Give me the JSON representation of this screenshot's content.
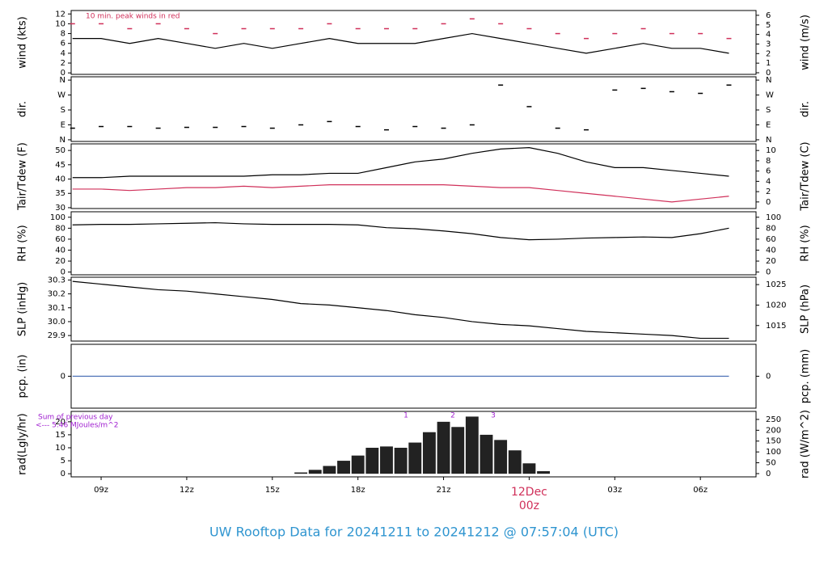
{
  "chart_data": [
    {
      "type": "line",
      "ylabel": "wind (kts)",
      "y2label": "wind (m/s)",
      "annotation": "10 min. peak winds in red",
      "x": [
        8,
        9,
        10,
        11,
        12,
        13,
        14,
        15,
        16,
        17,
        18,
        19,
        20,
        21,
        22,
        23,
        24,
        25,
        26,
        27,
        28,
        29,
        30,
        31
      ],
      "series": [
        {
          "color": "#000000",
          "values": [
            7,
            7,
            6,
            7,
            6,
            5,
            6,
            5,
            6,
            7,
            6,
            6,
            6,
            7,
            8,
            7,
            6,
            5,
            4,
            5,
            6,
            5,
            5,
            4
          ]
        },
        {
          "color": "#d0305a",
          "marker": "dash",
          "values": [
            10,
            10,
            9,
            10,
            9,
            8,
            9,
            9,
            9,
            10,
            9,
            9,
            9,
            10,
            11,
            10,
            9,
            8,
            7,
            8,
            9,
            8,
            8,
            7
          ]
        }
      ],
      "xlim": [
        7.95,
        31.95
      ],
      "ylim": [
        -0.3,
        12.7
      ],
      "yticks": [
        0,
        2,
        4,
        6,
        8,
        10,
        12
      ],
      "y2lim": [
        -0.17,
        6.5
      ],
      "y2ticks": [
        0,
        1,
        2,
        3,
        4,
        5,
        6
      ]
    },
    {
      "type": "scatter",
      "ylabel": "dir.",
      "y2label": "dir.",
      "x": [
        8,
        9,
        10,
        11,
        12,
        13,
        14,
        15,
        16,
        17,
        18,
        19,
        20,
        21,
        22,
        23,
        24,
        25,
        26,
        27,
        28,
        29,
        30,
        31
      ],
      "series": [
        {
          "color": "#000000",
          "values": [
            70,
            80,
            80,
            70,
            75,
            75,
            80,
            70,
            90,
            110,
            80,
            60,
            80,
            70,
            90,
            330,
            200,
            70,
            60,
            300,
            310,
            290,
            280,
            330
          ]
        }
      ],
      "xlim": [
        7.95,
        31.95
      ],
      "ylim": [
        -10,
        380
      ],
      "yticks": [
        {
          "value": 0,
          "label": "N"
        },
        {
          "value": 90,
          "label": "E"
        },
        {
          "value": 180,
          "label": "S"
        },
        {
          "value": 270,
          "label": "W"
        },
        {
          "value": 360,
          "label": "N"
        }
      ],
      "y2lim": [
        -10,
        380
      ],
      "y2ticks": [
        {
          "value": 0,
          "label": "N"
        },
        {
          "value": 90,
          "label": "E"
        },
        {
          "value": 180,
          "label": "S"
        },
        {
          "value": 270,
          "label": "W"
        },
        {
          "value": 360,
          "label": "N"
        }
      ]
    },
    {
      "type": "line",
      "ylabel": "Tair/Tdew (F)",
      "y2label": "Tair/Tdew (C)",
      "x": [
        8,
        9,
        10,
        11,
        12,
        13,
        14,
        15,
        16,
        17,
        18,
        19,
        20,
        21,
        22,
        23,
        24,
        25,
        26,
        27,
        28,
        29,
        30,
        31
      ],
      "series": [
        {
          "color": "#000000",
          "values": [
            40.5,
            40.5,
            41,
            41,
            41,
            41,
            41,
            41.5,
            41.5,
            42,
            42,
            44,
            46,
            47,
            49,
            50.5,
            51,
            49,
            46,
            44,
            44,
            43,
            42,
            41
          ]
        },
        {
          "color": "#d0305a",
          "values": [
            36.5,
            36.5,
            36,
            36.5,
            37,
            37,
            37.5,
            37,
            37.5,
            38,
            38,
            38,
            38,
            38,
            37.5,
            37,
            37,
            36,
            35,
            34,
            33,
            32,
            33,
            34
          ]
        }
      ],
      "xlim": [
        7.95,
        31.95
      ],
      "ylim": [
        29.7,
        52.3
      ],
      "yticks": [
        30,
        35,
        40,
        45,
        50
      ],
      "y2lim": [
        -1.28,
        11.28
      ],
      "y2ticks": [
        0,
        2,
        4,
        6,
        8,
        10
      ]
    },
    {
      "type": "line",
      "ylabel": "RH (%)",
      "y2label": "RH (%)",
      "x": [
        8,
        9,
        10,
        11,
        12,
        13,
        14,
        15,
        16,
        17,
        18,
        19,
        20,
        21,
        22,
        23,
        24,
        25,
        26,
        27,
        28,
        29,
        30,
        31
      ],
      "series": [
        {
          "color": "#000000",
          "values": [
            86,
            87,
            87,
            88,
            89,
            90,
            88,
            87,
            87,
            87,
            86,
            81,
            79,
            75,
            70,
            63,
            59,
            60,
            62,
            63,
            64,
            63,
            70,
            80
          ]
        }
      ],
      "xlim": [
        7.95,
        31.95
      ],
      "ylim": [
        -5,
        110
      ],
      "yticks": [
        0,
        20,
        40,
        60,
        80,
        100
      ],
      "y2lim": [
        -5,
        110
      ],
      "y2ticks": [
        0,
        20,
        40,
        60,
        80,
        100
      ]
    },
    {
      "type": "line",
      "ylabel": "SLP (inHg)",
      "y2label": "SLP (hPa)",
      "x": [
        8,
        9,
        10,
        11,
        12,
        13,
        14,
        15,
        16,
        17,
        18,
        19,
        20,
        21,
        22,
        23,
        24,
        25,
        26,
        27,
        28,
        29,
        30,
        31
      ],
      "series": [
        {
          "color": "#000000",
          "values": [
            30.29,
            30.27,
            30.25,
            30.23,
            30.22,
            30.2,
            30.18,
            30.16,
            30.13,
            30.12,
            30.1,
            30.08,
            30.05,
            30.03,
            30,
            29.98,
            29.97,
            29.95,
            29.93,
            29.92,
            29.91,
            29.9,
            29.88,
            29.88
          ]
        }
      ],
      "xlim": [
        7.95,
        31.95
      ],
      "ylim": [
        29.86,
        30.32
      ],
      "yticks": [
        {
          "value": 29.9,
          "label": "29.9"
        },
        {
          "value": 30,
          "label": "30.0"
        },
        {
          "value": 30.1,
          "label": "30.1"
        },
        {
          "value": 30.2,
          "label": "30.2"
        },
        {
          "value": 30.3,
          "label": "30.3"
        }
      ],
      "y2lim": [
        1011.2,
        1026.8
      ],
      "y2ticks": [
        1015,
        1020,
        1025
      ]
    },
    {
      "type": "line",
      "ylabel": "pcp. (in)",
      "y2label": "pcp. (mm)",
      "x": [
        8,
        9,
        10,
        11,
        12,
        13,
        14,
        15,
        16,
        17,
        18,
        19,
        20,
        21,
        22,
        23,
        24,
        25,
        26,
        27,
        28,
        29,
        30,
        31
      ],
      "series": [
        {
          "color": "#4a6fb5",
          "values": [
            0,
            0,
            0,
            0,
            0,
            0,
            0,
            0,
            0,
            0,
            0,
            0,
            0,
            0,
            0,
            0,
            0,
            0,
            0,
            0,
            0,
            0,
            0,
            0
          ]
        }
      ],
      "xlim": [
        7.95,
        31.95
      ],
      "ylim": [
        -1,
        1
      ],
      "yticks": [
        0
      ],
      "y2lim": [
        -1,
        1
      ],
      "y2ticks": [
        0
      ]
    },
    {
      "type": "bar",
      "ylabel": "rad(Lgly/hr)",
      "y2label": "rad (W/m^2)",
      "annotations": [
        "Sum of previous day",
        "<--- 5.46 MJoules/m^2"
      ],
      "markers": [
        "1",
        "2",
        "3"
      ],
      "date_label": "12Dec",
      "x": [
        15.5,
        16,
        16.5,
        17,
        17.5,
        18,
        18.5,
        19,
        19.5,
        20,
        20.5,
        21,
        21.5,
        22,
        22.5,
        23,
        23.5,
        24,
        24.5
      ],
      "series": [
        {
          "color": "#222222",
          "values": [
            0,
            0.5,
            1.5,
            3,
            5,
            7,
            10,
            10.5,
            10,
            12,
            16,
            20,
            18,
            22,
            15,
            13,
            9,
            4,
            1
          ]
        }
      ],
      "xlim": [
        7.95,
        31.95
      ],
      "ylim": [
        -1.2,
        24
      ],
      "yticks": [
        0,
        5,
        10,
        15,
        20
      ],
      "y2lim": [
        -15,
        287
      ],
      "y2ticks": [
        0,
        50,
        100,
        150,
        200,
        250
      ],
      "xticks": [
        {
          "value": 9,
          "label": "09z"
        },
        {
          "value": 12,
          "label": "12z"
        },
        {
          "value": 15,
          "label": "15z"
        },
        {
          "value": 18,
          "label": "18z"
        },
        {
          "value": 21,
          "label": "21z"
        },
        {
          "value": 24,
          "label": "00z"
        },
        {
          "value": 27,
          "label": "03z"
        },
        {
          "value": 30,
          "label": "06z"
        }
      ]
    }
  ],
  "footer": "UW Rooftop Data for 20241211  to  20241212 @ 07:57:04  (UTC)"
}
